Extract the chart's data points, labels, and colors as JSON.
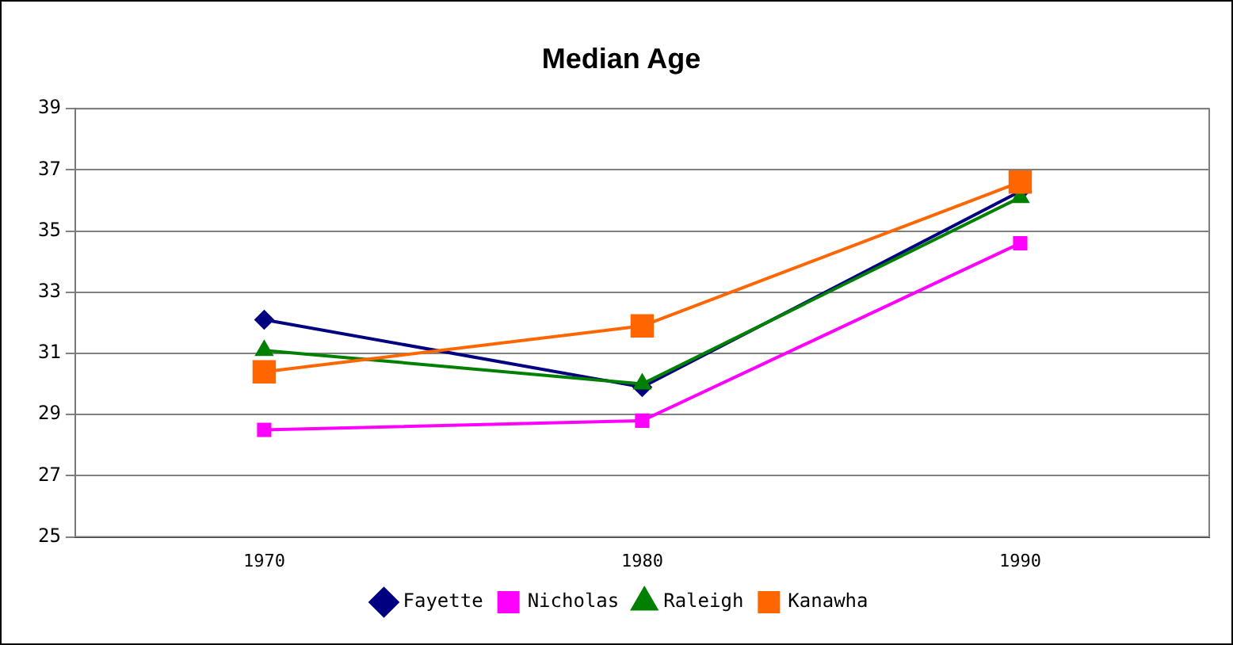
{
  "chart_data": {
    "type": "line",
    "title": "Median Age",
    "categories": [
      "1970",
      "1980",
      "1990"
    ],
    "series": [
      {
        "name": "Fayette",
        "color": "#000080",
        "marker": "diamond",
        "values": [
          32.1,
          29.9,
          36.3
        ]
      },
      {
        "name": "Nicholas",
        "color": "#ff00ff",
        "marker": "square",
        "values": [
          28.5,
          28.8,
          34.6
        ]
      },
      {
        "name": "Raleigh",
        "color": "#008000",
        "marker": "triangle",
        "values": [
          31.1,
          30.0,
          36.1
        ]
      },
      {
        "name": "Kanawha",
        "color": "#ff6600",
        "marker": "square",
        "values": [
          30.4,
          31.9,
          36.6
        ]
      }
    ],
    "ylim": [
      25,
      39
    ],
    "yticks": [
      25,
      27,
      29,
      31,
      33,
      35,
      37,
      39
    ],
    "grid": "y",
    "legend": "bottom"
  }
}
